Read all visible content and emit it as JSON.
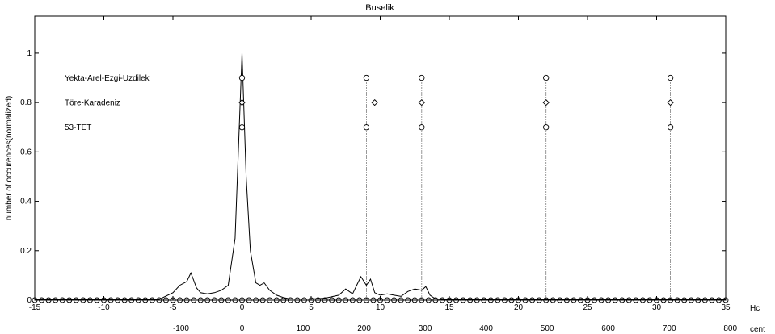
{
  "chart_data": {
    "type": "line",
    "title": "Buselik",
    "ylabel": "number of occurences(normalized)",
    "x_primary_unit": "Hc",
    "x_secondary_unit": "cent",
    "xlim": [
      -15,
      35
    ],
    "ylim": [
      0,
      1.15
    ],
    "x_ticks": [
      -15,
      -10,
      -5,
      0,
      5,
      10,
      15,
      20,
      25,
      30,
      35
    ],
    "x_tick_labels": [
      "-15",
      "-10",
      "-5",
      "0",
      "5",
      "10",
      "15",
      "20",
      "25",
      "30",
      "35"
    ],
    "y_ticks": [
      0,
      0.2,
      0.4,
      0.6,
      0.8,
      1
    ],
    "y_tick_labels": [
      "0",
      "0.2",
      "0.4",
      "0.6",
      "0.8",
      "1"
    ],
    "x_secondary_ticks": [
      -100,
      0,
      100,
      200,
      300,
      400,
      500,
      600,
      700,
      800
    ],
    "x_secondary_tick_labels": [
      "-100",
      "0",
      "100",
      "200",
      "300",
      "400",
      "500",
      "600",
      "700",
      "800"
    ],
    "grid": false,
    "histogram": {
      "name": "pitch histogram",
      "x": [
        -15,
        -12,
        -9,
        -6,
        -5,
        -4.5,
        -4,
        -3.7,
        -3.5,
        -3.3,
        -3,
        -2.5,
        -2,
        -1.5,
        -1,
        -0.5,
        0,
        0.3,
        0.6,
        1,
        1.3,
        1.6,
        2,
        2.5,
        3,
        3.5,
        4,
        5,
        6,
        7,
        7.5,
        8,
        8.3,
        8.6,
        9,
        9.3,
        9.6,
        10,
        10.5,
        11,
        11.5,
        12,
        12.5,
        13,
        13.3,
        13.6,
        14,
        14.5,
        16,
        20,
        25,
        30,
        35
      ],
      "y": [
        0.002,
        0.002,
        0.002,
        0.003,
        0.03,
        0.06,
        0.075,
        0.11,
        0.08,
        0.05,
        0.03,
        0.025,
        0.03,
        0.04,
        0.06,
        0.25,
        1.0,
        0.5,
        0.2,
        0.07,
        0.06,
        0.07,
        0.04,
        0.02,
        0.01,
        0.005,
        0.005,
        0.005,
        0.008,
        0.02,
        0.045,
        0.025,
        0.06,
        0.095,
        0.06,
        0.085,
        0.03,
        0.02,
        0.025,
        0.02,
        0.015,
        0.035,
        0.045,
        0.04,
        0.055,
        0.02,
        0.005,
        0.003,
        0.002,
        0.002,
        0.002,
        0.002,
        0.002
      ]
    },
    "theories": [
      {
        "name": "Yekta-Arel-Ezgi-Uzdilek",
        "marker": "circle",
        "y": 0.9,
        "x": [
          0,
          9,
          13,
          22,
          31
        ]
      },
      {
        "name": "Töre-Karadeniz",
        "marker": "diamond",
        "y": 0.8,
        "x": [
          0,
          9.6,
          13,
          22,
          31
        ]
      },
      {
        "name": "53-TET",
        "marker": "circle",
        "y": 0.7,
        "x": [
          0,
          9,
          13,
          22,
          31
        ]
      }
    ],
    "vertical_lines_x": [
      0,
      9,
      13,
      22,
      31
    ],
    "baseline_markers": {
      "y": 0,
      "step": 0.5
    }
  }
}
